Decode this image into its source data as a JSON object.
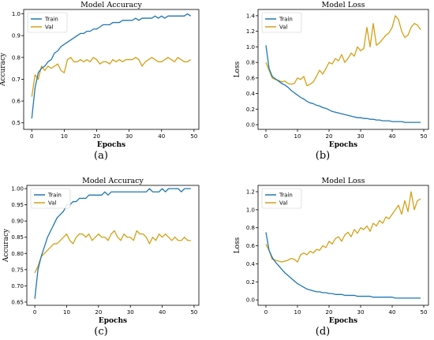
{
  "colors": {
    "train": "#1f77b4",
    "val": "#d4a017",
    "axis": "#000000"
  },
  "chart_data": [
    {
      "type": "line",
      "caption": "(a)",
      "title": "Model Accuracy",
      "xlabel": "Epochs",
      "ylabel": "Accuracy",
      "xlim": [
        -2.5,
        51.5
      ],
      "ylim": [
        0.47,
        1.02
      ],
      "xticks": [
        0,
        10,
        20,
        30,
        40,
        50
      ],
      "yticks": [
        0.5,
        0.6,
        0.7,
        0.8,
        0.9,
        1.0
      ],
      "ytick_labels": [
        "0.5",
        "0.6",
        "0.7",
        "0.8",
        "0.9",
        "1.0"
      ],
      "legend": "upper-left",
      "series": [
        {
          "name": "Train",
          "values": [
            0.52,
            0.66,
            0.73,
            0.75,
            0.76,
            0.78,
            0.79,
            0.82,
            0.83,
            0.85,
            0.86,
            0.87,
            0.88,
            0.89,
            0.9,
            0.91,
            0.91,
            0.92,
            0.92,
            0.93,
            0.93,
            0.94,
            0.95,
            0.95,
            0.95,
            0.96,
            0.96,
            0.96,
            0.97,
            0.97,
            0.97,
            0.97,
            0.98,
            0.97,
            0.98,
            0.98,
            0.98,
            0.98,
            0.99,
            0.98,
            0.99,
            0.98,
            0.99,
            0.99,
            0.99,
            0.99,
            0.99,
            0.99,
            1.0,
            0.99
          ]
        },
        {
          "name": "Val",
          "values": [
            0.62,
            0.72,
            0.7,
            0.76,
            0.74,
            0.76,
            0.75,
            0.76,
            0.77,
            0.74,
            0.73,
            0.79,
            0.8,
            0.78,
            0.78,
            0.79,
            0.78,
            0.79,
            0.78,
            0.8,
            0.79,
            0.77,
            0.78,
            0.78,
            0.77,
            0.79,
            0.78,
            0.79,
            0.78,
            0.79,
            0.79,
            0.79,
            0.8,
            0.79,
            0.76,
            0.78,
            0.79,
            0.8,
            0.79,
            0.78,
            0.78,
            0.79,
            0.8,
            0.79,
            0.78,
            0.8,
            0.79,
            0.78,
            0.78,
            0.79
          ]
        }
      ]
    },
    {
      "type": "line",
      "caption": "(b)",
      "title": "Model Loss",
      "xlabel": "Epochs",
      "ylabel": "Loss",
      "xlim": [
        -2.5,
        51.5
      ],
      "ylim": [
        -0.06,
        1.48
      ],
      "xticks": [
        0,
        10,
        20,
        30,
        40,
        50
      ],
      "yticks": [
        0.0,
        0.2,
        0.4,
        0.6,
        0.8,
        1.0,
        1.2,
        1.4
      ],
      "ytick_labels": [
        "0.0",
        "0.2",
        "0.4",
        "0.6",
        "0.8",
        "1.0",
        "1.2",
        "1.4"
      ],
      "legend": "upper-left",
      "series": [
        {
          "name": "Train",
          "values": [
            1.02,
            0.72,
            0.62,
            0.59,
            0.56,
            0.53,
            0.51,
            0.48,
            0.44,
            0.41,
            0.38,
            0.35,
            0.33,
            0.3,
            0.28,
            0.27,
            0.25,
            0.24,
            0.22,
            0.21,
            0.19,
            0.17,
            0.16,
            0.15,
            0.14,
            0.13,
            0.12,
            0.11,
            0.1,
            0.09,
            0.09,
            0.08,
            0.08,
            0.07,
            0.07,
            0.06,
            0.06,
            0.05,
            0.05,
            0.05,
            0.04,
            0.04,
            0.04,
            0.04,
            0.03,
            0.03,
            0.03,
            0.03,
            0.03,
            0.03
          ]
        },
        {
          "name": "Val",
          "values": [
            0.8,
            0.7,
            0.6,
            0.58,
            0.57,
            0.55,
            0.56,
            0.53,
            0.52,
            0.53,
            0.6,
            0.58,
            0.62,
            0.5,
            0.52,
            0.55,
            0.62,
            0.7,
            0.65,
            0.72,
            0.8,
            0.78,
            0.85,
            0.82,
            0.9,
            0.8,
            0.85,
            0.92,
            0.88,
            1.0,
            0.95,
            0.98,
            1.25,
            1.0,
            1.3,
            1.02,
            1.05,
            1.1,
            1.15,
            1.18,
            1.25,
            1.4,
            1.35,
            1.2,
            1.12,
            1.15,
            1.25,
            1.3,
            1.28,
            1.22
          ]
        }
      ]
    },
    {
      "type": "line",
      "caption": "(c)",
      "title": "Model Accuracy",
      "xlabel": "Epochs",
      "ylabel": "Accuracy",
      "xlim": [
        -2.5,
        51.5
      ],
      "ylim": [
        0.64,
        1.01
      ],
      "xticks": [
        0,
        10,
        20,
        30,
        40,
        50
      ],
      "yticks": [
        0.65,
        0.7,
        0.75,
        0.8,
        0.85,
        0.9,
        0.95,
        1.0
      ],
      "ytick_labels": [
        "0.65",
        "0.70",
        "0.75",
        "0.80",
        "0.85",
        "0.90",
        "0.95",
        "1.00"
      ],
      "legend": "upper-left",
      "series": [
        {
          "name": "Train",
          "values": [
            0.66,
            0.75,
            0.79,
            0.82,
            0.85,
            0.87,
            0.89,
            0.91,
            0.92,
            0.93,
            0.95,
            0.95,
            0.96,
            0.96,
            0.97,
            0.97,
            0.97,
            0.98,
            0.98,
            0.98,
            0.98,
            0.98,
            0.99,
            0.98,
            0.99,
            0.99,
            0.99,
            0.99,
            0.99,
            0.99,
            0.99,
            0.99,
            0.99,
            0.99,
            0.99,
            0.99,
            1.0,
            0.99,
            0.99,
            0.99,
            1.0,
            0.99,
            1.0,
            1.0,
            1.0,
            1.0,
            0.99,
            1.0,
            1.0,
            1.0
          ]
        },
        {
          "name": "Val",
          "values": [
            0.74,
            0.76,
            0.79,
            0.8,
            0.81,
            0.82,
            0.83,
            0.83,
            0.84,
            0.85,
            0.86,
            0.84,
            0.83,
            0.85,
            0.86,
            0.86,
            0.85,
            0.86,
            0.84,
            0.85,
            0.86,
            0.85,
            0.85,
            0.84,
            0.86,
            0.87,
            0.85,
            0.84,
            0.86,
            0.85,
            0.85,
            0.84,
            0.87,
            0.86,
            0.86,
            0.85,
            0.83,
            0.85,
            0.84,
            0.86,
            0.85,
            0.86,
            0.85,
            0.84,
            0.85,
            0.84,
            0.84,
            0.85,
            0.84,
            0.84
          ]
        }
      ]
    },
    {
      "type": "line",
      "caption": "(d)",
      "title": "Model Loss",
      "xlabel": "Epochs",
      "ylabel": "Loss",
      "xlim": [
        -2.5,
        51.5
      ],
      "ylim": [
        -0.06,
        1.27
      ],
      "xticks": [
        0,
        10,
        20,
        30,
        40,
        50
      ],
      "yticks": [
        0.0,
        0.2,
        0.4,
        0.6,
        0.8,
        1.0,
        1.2
      ],
      "ytick_labels": [
        "0.0",
        "0.2",
        "0.4",
        "0.6",
        "0.8",
        "1.0",
        "1.2"
      ],
      "legend": "upper-left",
      "series": [
        {
          "name": "Train",
          "values": [
            0.75,
            0.55,
            0.47,
            0.42,
            0.38,
            0.34,
            0.3,
            0.27,
            0.24,
            0.21,
            0.18,
            0.16,
            0.14,
            0.12,
            0.11,
            0.1,
            0.09,
            0.09,
            0.08,
            0.08,
            0.07,
            0.07,
            0.06,
            0.06,
            0.06,
            0.05,
            0.05,
            0.05,
            0.05,
            0.04,
            0.04,
            0.04,
            0.04,
            0.04,
            0.03,
            0.03,
            0.03,
            0.03,
            0.03,
            0.03,
            0.03,
            0.02,
            0.02,
            0.02,
            0.02,
            0.02,
            0.02,
            0.02,
            0.02,
            0.02
          ]
        },
        {
          "name": "Val",
          "values": [
            0.62,
            0.55,
            0.45,
            0.44,
            0.43,
            0.42,
            0.43,
            0.44,
            0.46,
            0.45,
            0.42,
            0.5,
            0.52,
            0.5,
            0.54,
            0.52,
            0.56,
            0.55,
            0.6,
            0.58,
            0.65,
            0.62,
            0.68,
            0.7,
            0.65,
            0.72,
            0.75,
            0.7,
            0.78,
            0.74,
            0.8,
            0.78,
            0.82,
            0.76,
            0.85,
            0.82,
            0.88,
            0.85,
            0.92,
            0.9,
            0.95,
            1.0,
            1.05,
            0.95,
            1.1,
            0.98,
            1.2,
            1.0,
            1.1,
            1.12
          ]
        }
      ]
    }
  ]
}
